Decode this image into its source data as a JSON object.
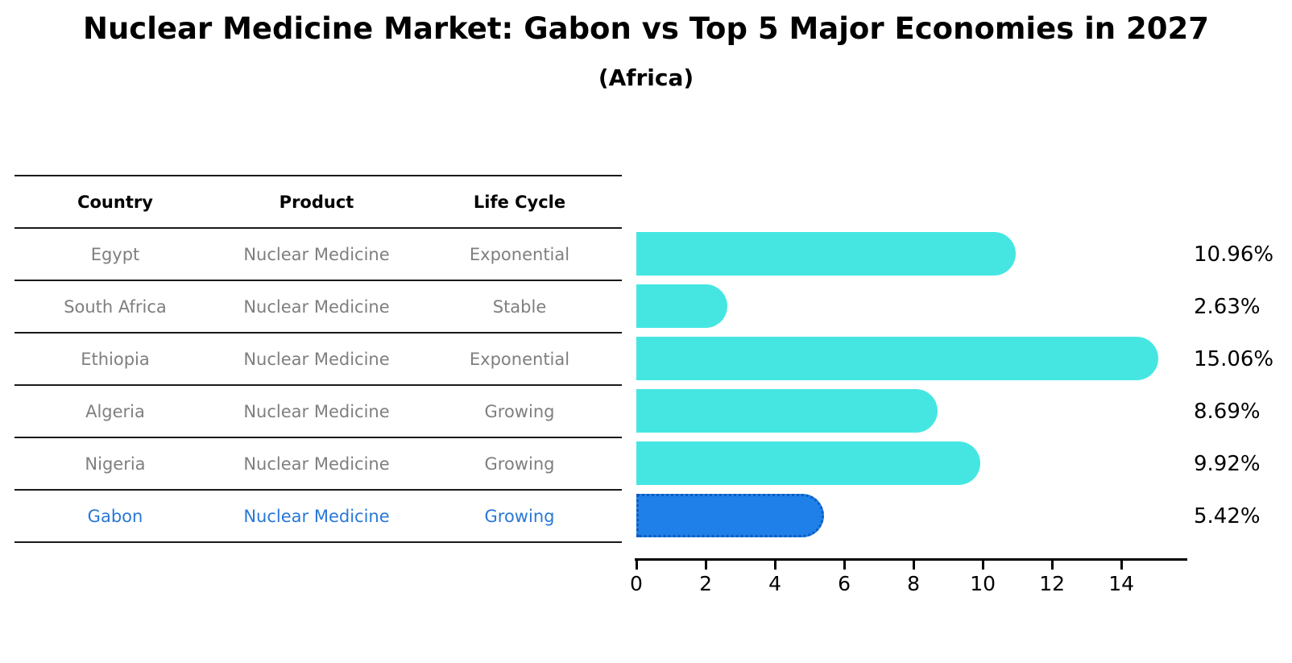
{
  "title": "Nuclear Medicine Market: Gabon vs Top 5 Major Economies in 2027",
  "subtitle": "(Africa)",
  "table": {
    "headers": [
      "Country",
      "Product",
      "Life Cycle"
    ],
    "rows": [
      {
        "country": "Egypt",
        "product": "Nuclear Medicine",
        "life_cycle": "Exponential",
        "highlight": false
      },
      {
        "country": "South Africa",
        "product": "Nuclear Medicine",
        "life_cycle": "Stable",
        "highlight": false
      },
      {
        "country": "Ethiopia",
        "product": "Nuclear Medicine",
        "life_cycle": "Exponential",
        "highlight": false
      },
      {
        "country": "Algeria",
        "product": "Nuclear Medicine",
        "life_cycle": "Growing",
        "highlight": false
      },
      {
        "country": "Nigeria",
        "product": "Nuclear Medicine",
        "life_cycle": "Growing",
        "highlight": true
      }
    ],
    "highlight_row": {
      "country": "Gabon",
      "product": "Nuclear Medicine",
      "life_cycle": "Growing"
    }
  },
  "chart_data": {
    "type": "bar",
    "orientation": "horizontal",
    "title": "Nuclear Medicine Market: Gabon vs Top 5 Major Economies in 2027",
    "subtitle": "(Africa)",
    "categories": [
      "Egypt",
      "South Africa",
      "Ethiopia",
      "Algeria",
      "Nigeria",
      "Gabon"
    ],
    "values": [
      10.96,
      2.63,
      15.06,
      8.69,
      9.92,
      5.42
    ],
    "value_labels": [
      "10.96%",
      "2.63%",
      "15.06%",
      "8.69%",
      "9.92%",
      "5.42%"
    ],
    "xlim": [
      0,
      15.81
    ],
    "xticks": [
      0,
      2,
      4,
      6,
      8,
      10,
      12,
      14
    ],
    "grid": false,
    "legend": "none",
    "highlight_index": 5
  },
  "colors": {
    "bar_cyan": "#45e6e2",
    "bar_blue": "#1e80e8",
    "bar_blue_border": "#0f5bbf",
    "table_text_gray": "#7f7f7f",
    "highlight_text_blue": "#2878d8",
    "line_black": "#1a1a1a"
  }
}
